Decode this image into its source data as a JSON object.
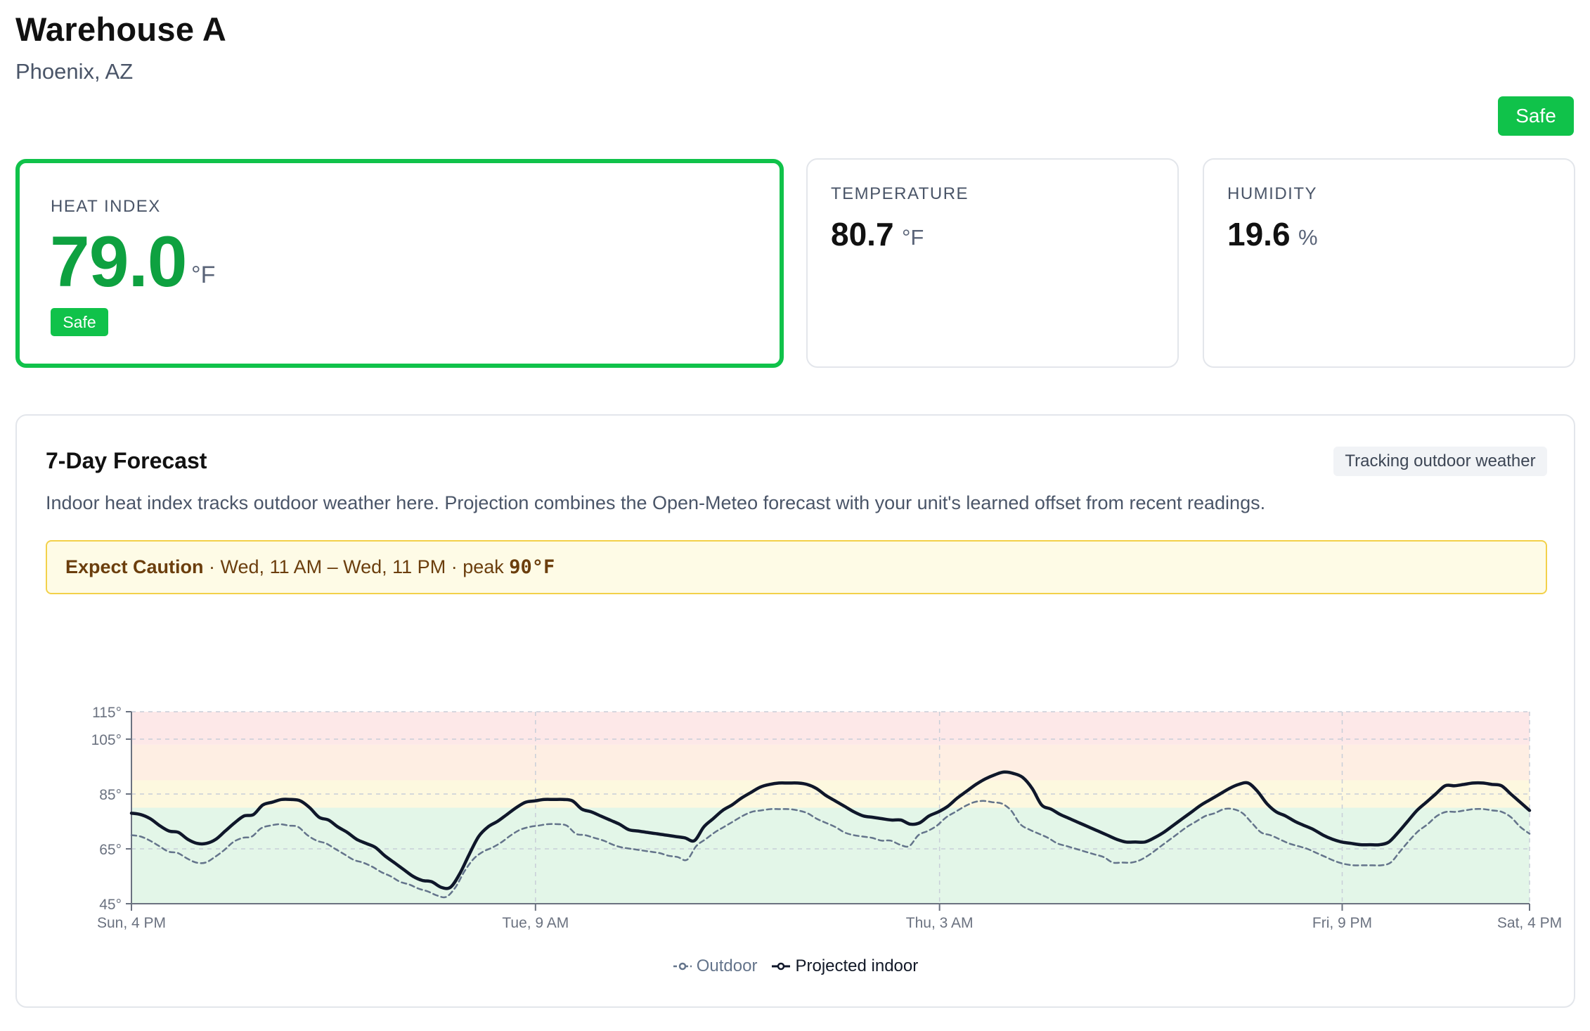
{
  "site": {
    "name": "Warehouse A",
    "location": "Phoenix, AZ",
    "status": "Safe"
  },
  "metrics": {
    "heat_index": {
      "label": "HEAT INDEX",
      "value": "79.0",
      "unit": "°F",
      "badge": "Safe"
    },
    "temperature": {
      "label": "TEMPERATURE",
      "value": "80.7",
      "unit": "°F"
    },
    "humidity": {
      "label": "HUMIDITY",
      "value": "19.6",
      "unit": "%"
    }
  },
  "colors": {
    "safe": "#10c24a",
    "safe_text": "#0ea140",
    "caution_bg": "#fefbe6",
    "caution_border": "#f3d14a"
  },
  "forecast": {
    "title": "7-Day Forecast",
    "tag": "Tracking outdoor weather",
    "description": "Indoor heat index tracks outdoor weather here. Projection combines the Open-Meteo forecast with your unit's learned offset from recent readings.",
    "alert": {
      "level": "Expect Caution",
      "window": "Wed, 11 AM – Wed, 11 PM",
      "peak_label": "peak",
      "peak_value": "90°F"
    },
    "legend": {
      "outdoor": "Outdoor",
      "indoor": "Projected indoor"
    }
  },
  "chart_data": {
    "type": "line",
    "y_ticks": [
      "45°",
      "65°",
      "85°",
      "105°",
      "115°"
    ],
    "x_ticks": [
      "Sun, 4 PM",
      "Tue, 9 AM",
      "Thu, 3 AM",
      "Fri, 9 PM",
      "Sat, 4 PM"
    ],
    "ylim": [
      45,
      115
    ],
    "bands": [
      {
        "from": 45,
        "to": 80,
        "color": "#e3f6e8"
      },
      {
        "from": 80,
        "to": 90,
        "color": "#fdf8df"
      },
      {
        "from": 90,
        "to": 103,
        "color": "#feeee3"
      },
      {
        "from": 103,
        "to": 115,
        "color": "#fde8e8"
      }
    ],
    "series": [
      {
        "name": "Outdoor",
        "style": "dashed",
        "color": "#64748b",
        "values": [
          70,
          69.5,
          68,
          66,
          64,
          63.5,
          61.5,
          60,
          60,
          62,
          64.5,
          67.5,
          69,
          69.5,
          72.5,
          73.5,
          74,
          73.5,
          73,
          70,
          68,
          67,
          65,
          63,
          61,
          60,
          58.5,
          56.5,
          55,
          53,
          52,
          50.5,
          49.5,
          48,
          47.5,
          51,
          57,
          61.5,
          64,
          65.5,
          67.5,
          70,
          72,
          73,
          73.5,
          74,
          74,
          73.5,
          70.5,
          70,
          69,
          68,
          66.5,
          65.5,
          65,
          64.5,
          64,
          63.5,
          62.5,
          62,
          61,
          66,
          68.5,
          71,
          73,
          75,
          77,
          78.5,
          79,
          79.5,
          79.5,
          79.5,
          79,
          78,
          76,
          74.5,
          73,
          71,
          70,
          69.5,
          69,
          68,
          68,
          66.5,
          66,
          70,
          71.5,
          73.5,
          76.5,
          78.5,
          80.5,
          82,
          82.5,
          82,
          81.5,
          79,
          74,
          72,
          70.5,
          69,
          67,
          66,
          65,
          64,
          63,
          62,
          60,
          60,
          60,
          61,
          63,
          65.5,
          68,
          70.5,
          73,
          75,
          77,
          78,
          79.5,
          79.5,
          78,
          74.5,
          71,
          70,
          68.5,
          67,
          66,
          65,
          63.5,
          62,
          60.5,
          59.5,
          59,
          59,
          59,
          59,
          60,
          64,
          68,
          71.5,
          74,
          77,
          78.5,
          78.5,
          79,
          79.5,
          79.5,
          79,
          78.5,
          76.5,
          73,
          70.5
        ]
      },
      {
        "name": "Projected indoor",
        "style": "solid",
        "color": "#0f172a",
        "values": [
          78,
          77.5,
          76,
          73.5,
          71.5,
          71,
          68.5,
          67,
          67,
          68.5,
          71.5,
          74.5,
          77,
          77.5,
          81,
          82,
          83,
          83,
          82.5,
          80,
          76.5,
          75.5,
          73,
          71,
          68.5,
          67,
          65.5,
          62.5,
          60,
          57.5,
          55,
          53.5,
          53,
          51,
          51,
          56,
          63,
          69.5,
          73,
          75,
          77.5,
          80,
          82,
          82.5,
          83,
          83,
          83,
          82.5,
          79.5,
          78.5,
          77,
          75.5,
          74,
          72,
          71.5,
          71,
          70.5,
          70,
          69.5,
          69,
          68,
          73,
          76,
          79,
          81,
          83.5,
          85.5,
          87.5,
          88.5,
          89,
          89,
          89,
          88.5,
          87,
          84.5,
          82.5,
          80.5,
          78.5,
          77,
          76.5,
          76,
          75.5,
          75.5,
          74,
          74.5,
          77,
          78.5,
          80.5,
          83.5,
          86,
          88.5,
          90.5,
          92,
          93,
          92.5,
          91,
          87,
          81,
          79.5,
          77.5,
          76,
          74.5,
          73,
          71.5,
          70,
          68.5,
          67.5,
          67.5,
          67.5,
          69,
          71,
          73.5,
          76,
          78.5,
          81,
          83,
          85,
          87,
          88.5,
          89,
          86,
          81.5,
          78.5,
          77,
          75,
          73.5,
          72,
          70,
          68.5,
          67.5,
          67,
          66.5,
          66.5,
          66.5,
          67.5,
          71,
          75,
          79,
          82,
          85,
          88,
          88,
          88.5,
          89,
          89,
          88.5,
          88,
          85,
          82,
          79
        ]
      }
    ]
  }
}
